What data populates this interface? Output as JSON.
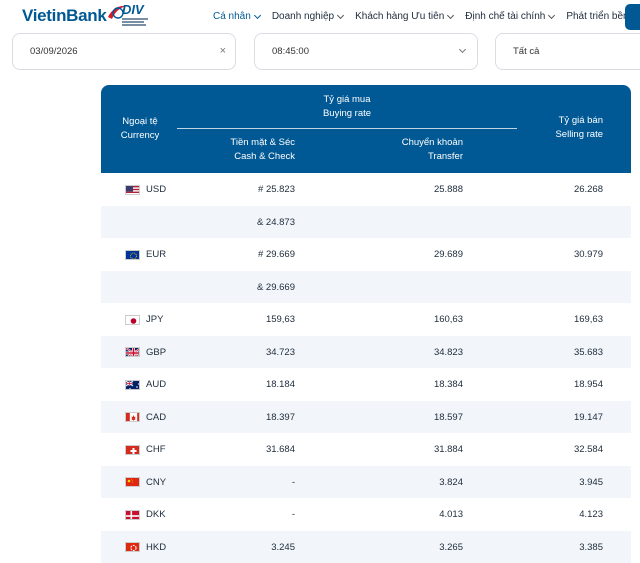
{
  "header": {
    "logo_text": "VietinBank",
    "badge_text": "DIV",
    "nav": [
      {
        "label": "Cá nhân",
        "active": true
      },
      {
        "label": "Doanh nghiệp",
        "active": false
      },
      {
        "label": "Khách hàng Ưu tiên",
        "active": false
      },
      {
        "label": "Định chế tài chính",
        "active": false
      },
      {
        "label": "Phát triển bền vững",
        "active": false
      }
    ]
  },
  "filters": {
    "date": "03/09/2026",
    "time": "08:45:00",
    "scope": "Tất cả",
    "clear_symbol": "×"
  },
  "table": {
    "col_currency_vi": "Ngoại tệ",
    "col_currency_en": "Currency",
    "col_buying_vi": "Tỷ giá mua",
    "col_buying_en": "Buying rate",
    "col_cash_vi": "Tiền mặt & Séc",
    "col_cash_en": "Cash & Check",
    "col_transfer_vi": "Chuyển khoản",
    "col_transfer_en": "Transfer",
    "col_selling_vi": "Tỷ giá bán",
    "col_selling_en": "Selling rate",
    "rows": [
      {
        "flag": "us-flag",
        "code": "USD",
        "cash": "# 25.823",
        "transfer": "25.888",
        "sell": "26.268"
      },
      {
        "flag": "",
        "code": "",
        "cash": "& 24.873",
        "transfer": "",
        "sell": ""
      },
      {
        "flag": "eu-flag",
        "code": "EUR",
        "cash": "# 29.669",
        "transfer": "29.689",
        "sell": "30.979"
      },
      {
        "flag": "",
        "code": "",
        "cash": "& 29.669",
        "transfer": "",
        "sell": ""
      },
      {
        "flag": "jp-flag",
        "code": "JPY",
        "cash": "159,63",
        "transfer": "160,63",
        "sell": "169,63"
      },
      {
        "flag": "gb-flag",
        "code": "GBP",
        "cash": "34.723",
        "transfer": "34.823",
        "sell": "35.683"
      },
      {
        "flag": "au-flag",
        "code": "AUD",
        "cash": "18.184",
        "transfer": "18.384",
        "sell": "18.954"
      },
      {
        "flag": "ca-flag",
        "code": "CAD",
        "cash": "18.397",
        "transfer": "18.597",
        "sell": "19.147"
      },
      {
        "flag": "ch-flag",
        "code": "CHF",
        "cash": "31.684",
        "transfer": "31.884",
        "sell": "32.584"
      },
      {
        "flag": "cn-flag",
        "code": "CNY",
        "cash": "-",
        "transfer": "3.824",
        "sell": "3.945"
      },
      {
        "flag": "dk-flag",
        "code": "DKK",
        "cash": "-",
        "transfer": "4.013",
        "sell": "4.123"
      },
      {
        "flag": "hk-flag",
        "code": "HKD",
        "cash": "3.245",
        "transfer": "3.265",
        "sell": "3.385"
      }
    ]
  },
  "colors": {
    "brand": "#005994",
    "row_alt": "#f2f6fa"
  }
}
